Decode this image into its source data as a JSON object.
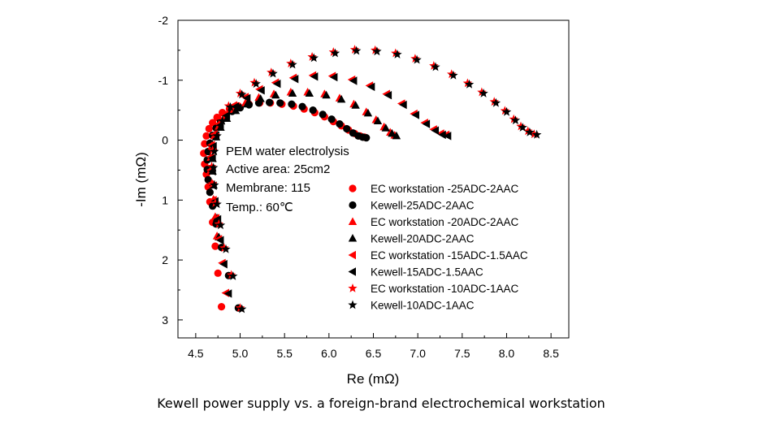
{
  "chart_data": {
    "type": "scatter",
    "xlabel": "Re (mΩ)",
    "ylabel": "-Im (mΩ)",
    "xlim": [
      4.3,
      8.7
    ],
    "ylim": [
      -2,
      3.3
    ],
    "y_reversed": true,
    "xticks": [
      "4.5",
      "5.0",
      "5.5",
      "6.0",
      "6.5",
      "7.0",
      "7.5",
      "8.0",
      "8.5"
    ],
    "yticks": [
      "-2",
      "-1",
      "0",
      "1",
      "2",
      "3"
    ],
    "grid": false,
    "legend_position": "bottom-right",
    "annotations": [
      "PEM water electrolysis",
      "Active area: 25cm2",
      "Membrane: 115",
      "Temp.: 60℃"
    ],
    "caption": "Kewell power supply vs. a foreign-brand electrochemical workstation",
    "legend": [
      {
        "label": "EC workstation -25ADC-2AAC",
        "marker": "circle",
        "color": "#ff0000"
      },
      {
        "label": "Kewell-25ADC-2AAC",
        "marker": "circle",
        "color": "#000000"
      },
      {
        "label": "EC workstation -20ADC-2AAC",
        "marker": "triangle-up",
        "color": "#ff0000"
      },
      {
        "label": "Kewell-20ADC-2AAC",
        "marker": "triangle-up",
        "color": "#000000"
      },
      {
        "label": "EC workstation -15ADC-1.5AAC",
        "marker": "triangle-left",
        "color": "#ff0000"
      },
      {
        "label": "Kewell-15ADC-1.5AAC",
        "marker": "triangle-left",
        "color": "#000000"
      },
      {
        "label": "EC workstation -10ADC-1AAC",
        "marker": "star",
        "color": "#ff0000"
      },
      {
        "label": "Kewell-10ADC-1AAC",
        "marker": "star",
        "color": "#000000"
      }
    ],
    "series": [
      {
        "name": "EC workstation -25ADC-2AAC",
        "marker": "circle",
        "color": "#ff0000",
        "x": [
          4.79,
          4.75,
          4.72,
          4.69,
          4.66,
          4.64,
          4.62,
          4.6,
          4.59,
          4.6,
          4.62,
          4.65,
          4.69,
          4.74,
          4.8,
          4.88,
          4.98,
          5.1,
          5.22,
          5.34,
          5.47,
          5.6,
          5.72,
          5.84,
          5.95,
          6.05,
          6.14,
          6.22,
          6.29,
          6.35,
          6.4
        ],
        "y": [
          2.78,
          2.22,
          1.77,
          1.37,
          1.03,
          0.78,
          0.57,
          0.4,
          0.22,
          0.06,
          -0.07,
          -0.19,
          -0.29,
          -0.38,
          -0.46,
          -0.52,
          -0.57,
          -0.6,
          -0.62,
          -0.62,
          -0.6,
          -0.57,
          -0.52,
          -0.46,
          -0.39,
          -0.31,
          -0.24,
          -0.17,
          -0.11,
          -0.07,
          -0.05
        ]
      },
      {
        "name": "Kewell-25ADC-2AAC",
        "marker": "circle",
        "color": "#000000",
        "x": [
          4.98,
          4.87,
          4.79,
          4.73,
          4.69,
          4.66,
          4.64,
          4.63,
          4.63,
          4.64,
          4.66,
          4.69,
          4.73,
          4.78,
          4.84,
          4.91,
          5.0,
          5.1,
          5.21,
          5.33,
          5.45,
          5.58,
          5.7,
          5.82,
          5.93,
          6.03,
          6.12,
          6.2,
          6.27,
          6.33,
          6.38,
          6.42
        ],
        "y": [
          2.8,
          2.26,
          1.79,
          1.4,
          1.1,
          0.87,
          0.66,
          0.49,
          0.33,
          0.19,
          0.05,
          -0.08,
          -0.2,
          -0.31,
          -0.4,
          -0.48,
          -0.54,
          -0.59,
          -0.62,
          -0.63,
          -0.62,
          -0.6,
          -0.56,
          -0.5,
          -0.43,
          -0.35,
          -0.27,
          -0.19,
          -0.12,
          -0.07,
          -0.05,
          -0.04
        ]
      },
      {
        "name": "EC workstation -20ADC-2AAC",
        "marker": "triangle-up",
        "color": "#ff0000",
        "x": [
          4.74,
          4.72,
          4.7,
          4.68,
          4.67,
          4.67,
          4.68,
          4.71,
          4.76,
          4.83,
          4.93,
          5.06,
          5.21,
          5.38,
          5.57,
          5.76,
          5.95,
          6.12,
          6.28,
          6.42,
          6.53,
          6.62,
          6.69,
          6.74
        ],
        "y": [
          1.6,
          1.28,
          0.99,
          0.73,
          0.5,
          0.29,
          0.1,
          -0.07,
          -0.23,
          -0.38,
          -0.51,
          -0.62,
          -0.71,
          -0.77,
          -0.8,
          -0.8,
          -0.77,
          -0.7,
          -0.6,
          -0.47,
          -0.34,
          -0.22,
          -0.13,
          -0.08
        ]
      },
      {
        "name": "Kewell-20ADC-2AAC",
        "marker": "triangle-up",
        "color": "#000000",
        "x": [
          4.76,
          4.74,
          4.72,
          4.7,
          4.69,
          4.69,
          4.7,
          4.73,
          4.78,
          4.85,
          4.95,
          5.08,
          5.23,
          5.4,
          5.59,
          5.78,
          5.97,
          6.14,
          6.3,
          6.44,
          6.55,
          6.64,
          6.71,
          6.76
        ],
        "y": [
          1.62,
          1.3,
          1.01,
          0.75,
          0.52,
          0.31,
          0.12,
          -0.05,
          -0.21,
          -0.36,
          -0.49,
          -0.6,
          -0.69,
          -0.75,
          -0.78,
          -0.78,
          -0.75,
          -0.68,
          -0.58,
          -0.45,
          -0.32,
          -0.2,
          -0.11,
          -0.07
        ]
      },
      {
        "name": "EC workstation -15ADC-1.5AAC",
        "marker": "triangle-left",
        "color": "#ff0000",
        "x": [
          4.84,
          4.8,
          4.76,
          4.73,
          4.7,
          4.68,
          4.67,
          4.67,
          4.68,
          4.71,
          4.76,
          4.83,
          4.93,
          5.06,
          5.22,
          5.4,
          5.6,
          5.82,
          6.04,
          6.26,
          6.46,
          6.65,
          6.82,
          6.96,
          7.08,
          7.18,
          7.26,
          7.32
        ],
        "y": [
          2.55,
          2.05,
          1.65,
          1.3,
          1.0,
          0.74,
          0.5,
          0.28,
          0.08,
          -0.1,
          -0.27,
          -0.43,
          -0.58,
          -0.72,
          -0.85,
          -0.96,
          -1.04,
          -1.08,
          -1.07,
          -1.01,
          -0.91,
          -0.77,
          -0.61,
          -0.44,
          -0.29,
          -0.18,
          -0.11,
          -0.09
        ]
      },
      {
        "name": "Kewell-15ADC-1.5AAC",
        "marker": "triangle-left",
        "color": "#000000",
        "x": [
          4.87,
          4.82,
          4.78,
          4.75,
          4.72,
          4.7,
          4.69,
          4.69,
          4.7,
          4.73,
          4.78,
          4.85,
          4.95,
          5.08,
          5.24,
          5.42,
          5.62,
          5.84,
          6.06,
          6.28,
          6.48,
          6.67,
          6.84,
          6.98,
          7.1,
          7.2,
          7.28,
          7.34
        ],
        "y": [
          2.56,
          2.07,
          1.67,
          1.32,
          1.02,
          0.76,
          0.52,
          0.3,
          0.1,
          -0.08,
          -0.25,
          -0.41,
          -0.56,
          -0.7,
          -0.83,
          -0.94,
          -1.02,
          -1.06,
          -1.05,
          -0.99,
          -0.89,
          -0.75,
          -0.59,
          -0.42,
          -0.27,
          -0.16,
          -0.09,
          -0.07
        ]
      },
      {
        "name": "EC workstation -10ADC-1AAC",
        "marker": "star",
        "color": "#ff0000",
        "x": [
          5.0,
          4.9,
          4.82,
          4.76,
          4.72,
          4.69,
          4.68,
          4.69,
          4.72,
          4.78,
          4.87,
          5.0,
          5.16,
          5.35,
          5.57,
          5.81,
          6.05,
          6.29,
          6.52,
          6.75,
          6.97,
          7.18,
          7.38,
          7.56,
          7.72,
          7.86,
          7.98,
          8.08,
          8.16,
          8.24,
          8.31
        ],
        "y": [
          2.8,
          2.25,
          1.8,
          1.4,
          1.05,
          0.73,
          0.44,
          0.17,
          -0.09,
          -0.34,
          -0.57,
          -0.78,
          -0.96,
          -1.13,
          -1.28,
          -1.39,
          -1.47,
          -1.51,
          -1.5,
          -1.45,
          -1.36,
          -1.24,
          -1.1,
          -0.95,
          -0.8,
          -0.64,
          -0.49,
          -0.35,
          -0.23,
          -0.15,
          -0.1
        ]
      },
      {
        "name": "Kewell-10ADC-1AAC",
        "marker": "star",
        "color": "#000000",
        "x": [
          5.02,
          4.92,
          4.84,
          4.78,
          4.74,
          4.71,
          4.7,
          4.71,
          4.74,
          4.8,
          4.89,
          5.02,
          5.18,
          5.37,
          5.59,
          5.83,
          6.07,
          6.31,
          6.54,
          6.77,
          6.99,
          7.2,
          7.4,
          7.58,
          7.74,
          7.88,
          8.0,
          8.1,
          8.18,
          8.26,
          8.34
        ],
        "y": [
          2.82,
          2.27,
          1.82,
          1.42,
          1.07,
          0.75,
          0.46,
          0.19,
          -0.07,
          -0.32,
          -0.55,
          -0.76,
          -0.94,
          -1.11,
          -1.26,
          -1.37,
          -1.45,
          -1.49,
          -1.48,
          -1.43,
          -1.34,
          -1.22,
          -1.08,
          -0.93,
          -0.78,
          -0.62,
          -0.47,
          -0.33,
          -0.21,
          -0.13,
          -0.09
        ]
      }
    ]
  }
}
